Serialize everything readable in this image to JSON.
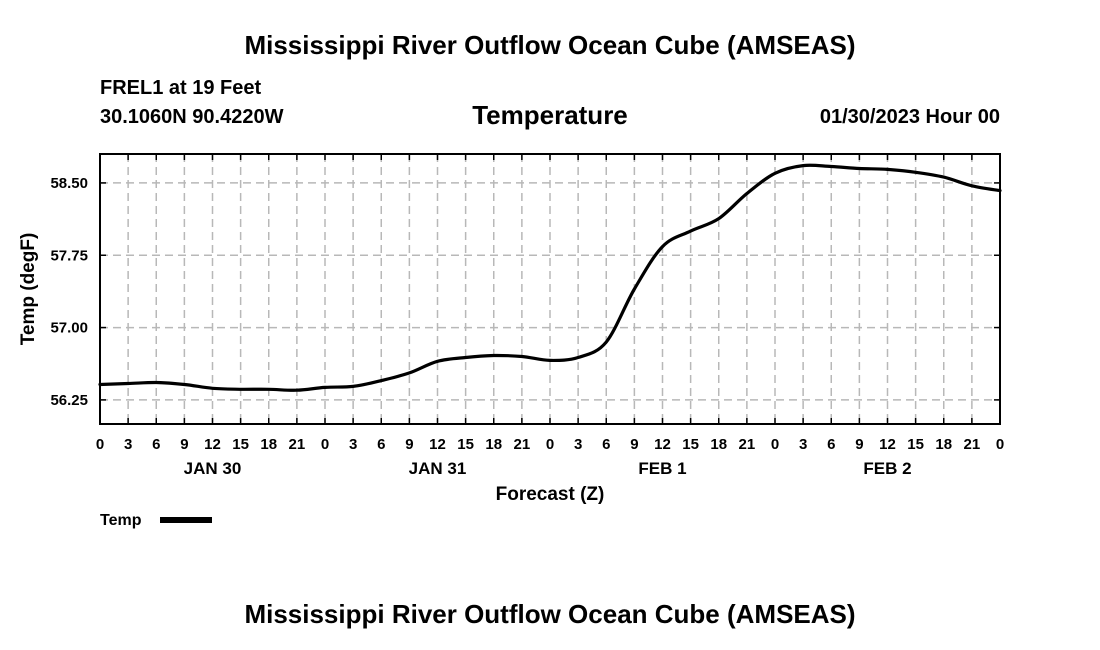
{
  "page": {
    "main_title": "Mississippi River Outflow Ocean Cube (AMSEAS)",
    "station_name": "FREL1 at 19 Feet",
    "station_coords": "30.1060N  90.4220W",
    "panel_title": "Temperature",
    "run_time": "01/30/2023 Hour 00",
    "bottom_title": "Mississippi River Outflow Ocean Cube (AMSEAS)"
  },
  "chart_data": {
    "type": "line",
    "title": "Temperature",
    "xlabel": "Forecast (Z)",
    "ylabel": "Temp (degF)",
    "x_range_hours": [
      0,
      96
    ],
    "x_tick_step_hours": 3,
    "x_tick_labels": [
      "0",
      "3",
      "6",
      "9",
      "12",
      "15",
      "18",
      "21",
      "0",
      "3",
      "6",
      "9",
      "12",
      "15",
      "18",
      "21",
      "0",
      "3",
      "6",
      "9",
      "12",
      "15",
      "18",
      "21",
      "0",
      "3",
      "6",
      "9",
      "12",
      "15",
      "18",
      "21",
      "0"
    ],
    "day_labels": [
      {
        "label": "JAN 30",
        "hour": 12
      },
      {
        "label": "JAN 31",
        "hour": 36
      },
      {
        "label": "FEB 1",
        "hour": 60
      },
      {
        "label": "FEB 2",
        "hour": 84
      }
    ],
    "ylim": [
      56.0,
      58.8
    ],
    "y_ticks": [
      56.25,
      57.0,
      57.75,
      58.5
    ],
    "y_tick_labels": [
      "56.25",
      "57.00",
      "57.75",
      "58.50"
    ],
    "grid": true,
    "legend": {
      "placement": "below-left",
      "label": "Temp"
    },
    "series": [
      {
        "name": "Temp",
        "color": "#000000",
        "x": [
          0,
          3,
          6,
          9,
          12,
          15,
          18,
          21,
          24,
          27,
          30,
          33,
          36,
          39,
          42,
          45,
          48,
          51,
          54,
          57,
          60,
          63,
          66,
          69,
          72,
          75,
          78,
          81,
          84,
          87,
          90,
          93,
          96
        ],
        "y": [
          56.41,
          56.42,
          56.43,
          56.41,
          56.37,
          56.36,
          56.36,
          56.35,
          56.38,
          56.39,
          56.45,
          56.53,
          56.65,
          56.69,
          56.71,
          56.7,
          56.66,
          56.69,
          56.85,
          57.4,
          57.84,
          58.0,
          58.13,
          58.39,
          58.6,
          58.68,
          58.67,
          58.65,
          58.64,
          58.61,
          58.56,
          58.47,
          58.42
        ]
      }
    ]
  }
}
